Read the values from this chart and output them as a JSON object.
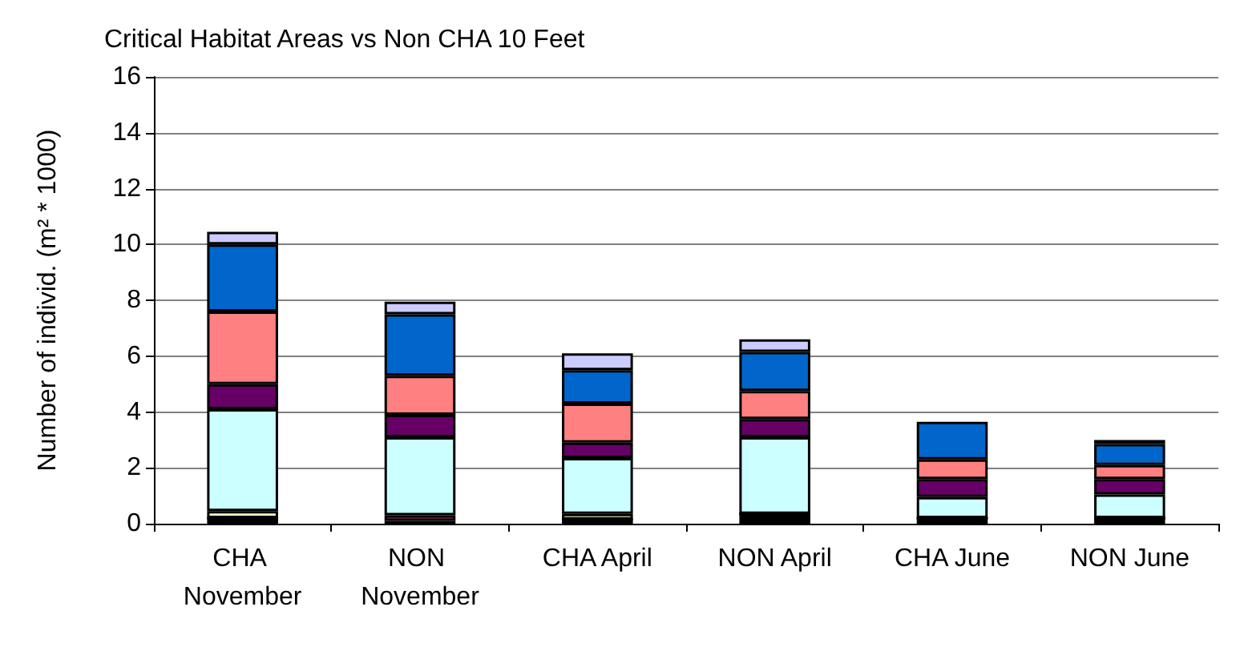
{
  "chart_data": {
    "type": "bar",
    "title": "Critical Habitat Areas vs Non CHA 10 Feet",
    "ylabel": "Number of individ. (m² * 1000)",
    "categories": [
      "CHA November",
      "NON November",
      "CHA April",
      "NON April",
      "CHA June",
      "NON June"
    ],
    "stacked": true,
    "grid": "y",
    "ylim": [
      0,
      16
    ],
    "yticks": [
      0,
      2,
      4,
      6,
      8,
      10,
      12,
      14,
      16
    ],
    "series": [
      {
        "color": "#000000",
        "values": [
          0.2,
          0.1,
          0.15,
          0.35,
          0.2,
          0.2
        ]
      },
      {
        "color": "#993366",
        "values": [
          0,
          0.2,
          0,
          0,
          0,
          0
        ]
      },
      {
        "color": "#ffffcc",
        "values": [
          0.25,
          null,
          0.2,
          0,
          0,
          0
        ]
      },
      {
        "color": "#ccffff",
        "values": [
          3.65,
          2.8,
          2.0,
          2.75,
          0.75,
          0.85
        ]
      },
      {
        "color": "#660066",
        "values": [
          0.9,
          0.8,
          0.55,
          0.65,
          0.65,
          0.55
        ]
      },
      {
        "color": "#ff8080",
        "values": [
          2.6,
          1.4,
          1.4,
          1.0,
          0.7,
          0.5
        ]
      },
      {
        "color": "#0066cc",
        "values": [
          2.4,
          2.2,
          1.2,
          1.4,
          1.35,
          0.75
        ]
      },
      {
        "color": "#ccccff",
        "values": [
          0.45,
          0.45,
          0.6,
          0.45,
          null,
          0.15
        ]
      }
    ]
  }
}
